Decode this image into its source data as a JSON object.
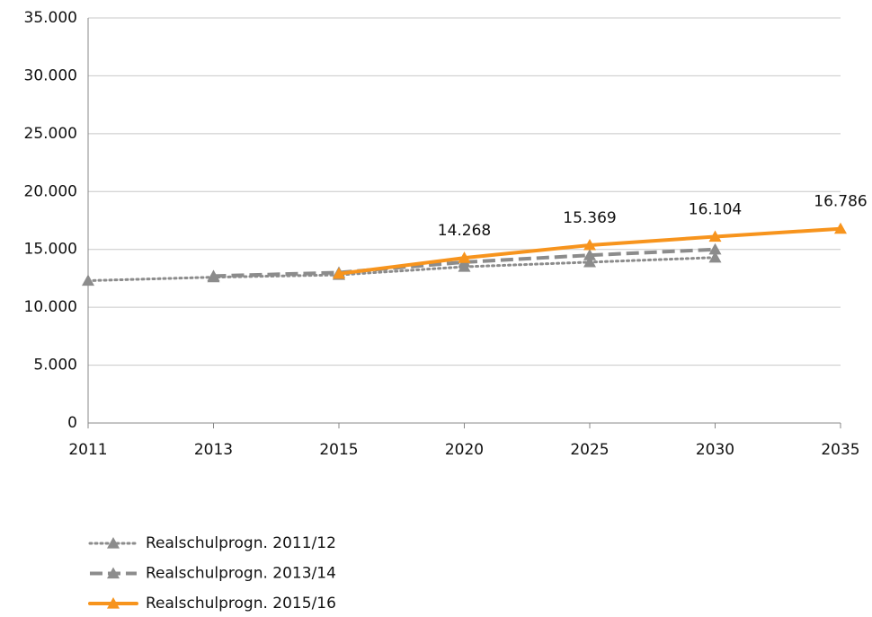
{
  "chart_data": {
    "type": "line",
    "categories": [
      "2011",
      "2013",
      "2015",
      "2020",
      "2025",
      "2030",
      "2035"
    ],
    "series": [
      {
        "name": "Realschulprogn. 2011/12",
        "color": "#8c8c8c",
        "style": "dotted",
        "values": [
          12300,
          12600,
          12800,
          13500,
          13900,
          14300,
          null
        ]
      },
      {
        "name": "Realschulprogn. 2013/14",
        "color": "#8c8c8c",
        "style": "dashed",
        "values": [
          null,
          12700,
          13000,
          13900,
          14500,
          15000,
          null
        ]
      },
      {
        "name": "Realschulprogn. 2015/16",
        "color": "#f7941d",
        "style": "solid",
        "values": [
          null,
          null,
          12900,
          14268,
          15369,
          16104,
          16786
        ],
        "value_labels": [
          null,
          null,
          null,
          "14.268",
          "15.369",
          "16.104",
          "16.786"
        ]
      }
    ],
    "ylim": [
      0,
      35000
    ],
    "yticks": [
      {
        "value": 0,
        "label": "0"
      },
      {
        "value": 5000,
        "label": "5.000"
      },
      {
        "value": 10000,
        "label": "10.000"
      },
      {
        "value": 15000,
        "label": "15.000"
      },
      {
        "value": 20000,
        "label": "20.000"
      },
      {
        "value": 25000,
        "label": "25.000"
      },
      {
        "value": 30000,
        "label": "30.000"
      },
      {
        "value": 35000,
        "label": "35.000"
      }
    ],
    "grid": true,
    "legend": "bottom-left"
  }
}
